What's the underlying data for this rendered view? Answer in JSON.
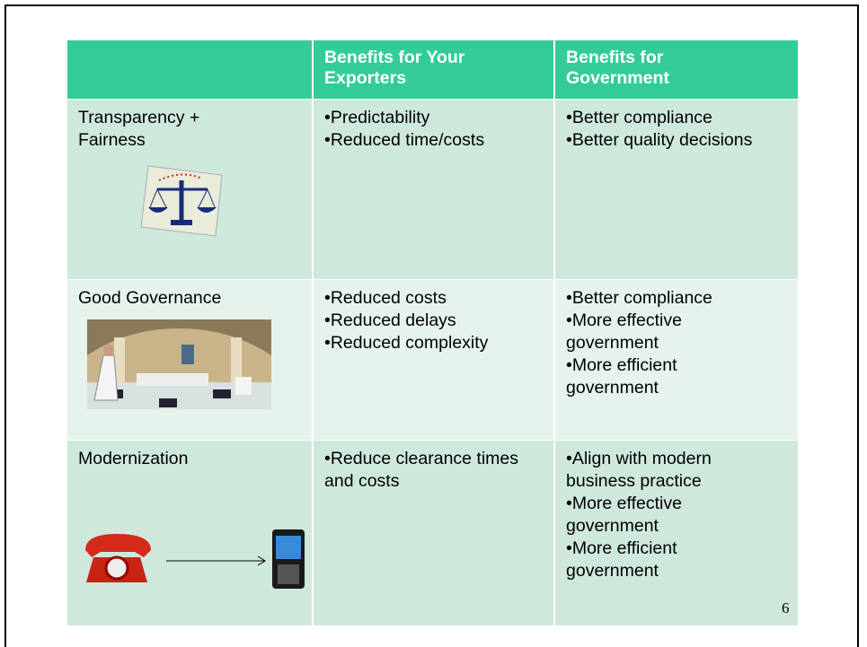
{
  "table": {
    "header": [
      "",
      "Benefits for Your Exporters",
      "Benefits for Government"
    ],
    "rows": [
      {
        "label": "Transparency + Fairness",
        "exporters": [
          "•Predictability",
          "•Reduced time/costs"
        ],
        "government": [
          "•Better compliance",
          "•Better quality decisions"
        ]
      },
      {
        "label": "Good Governance",
        "exporters": [
          "•Reduced costs",
          "•Reduced delays",
          "•Reduced complexity"
        ],
        "government": [
          "•Better compliance",
          "•More effective government",
          "•More efficient government"
        ]
      },
      {
        "label": "Modernization",
        "exporters": [
          "•Reduce clearance times and costs"
        ],
        "government": [
          "•Align with modern business practice",
          "•More effective government",
          "•More efficient government"
        ]
      }
    ]
  },
  "page_number": "6"
}
